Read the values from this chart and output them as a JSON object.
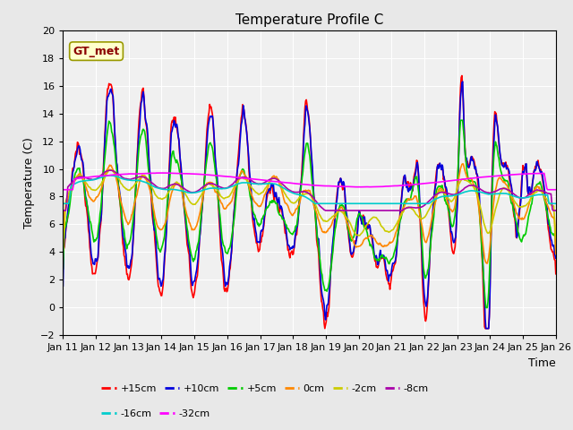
{
  "title": "Temperature Profile C",
  "xlabel": "Time",
  "ylabel": "Temperature (C)",
  "ylim": [
    -2,
    20
  ],
  "annotation": "GT_met",
  "background_color": "#e8e8e8",
  "plot_bg": "#f0f0f0",
  "x_ticks": [
    "Jan 11",
    "Jan 12",
    "Jan 13",
    "Jan 14",
    "Jan 15",
    "Jan 16",
    "Jan 17",
    "Jan 18",
    "Jan 19",
    "Jan 20",
    "Jan 21",
    "Jan 22",
    "Jan 23",
    "Jan 24",
    "Jan 25",
    "Jan 26"
  ],
  "series_order": [
    "+15cm",
    "+10cm",
    "+5cm",
    "0cm",
    "-2cm",
    "-8cm",
    "-16cm",
    "-32cm"
  ],
  "series": {
    "+15cm": {
      "color": "#ff0000",
      "lw": 1.2
    },
    "+10cm": {
      "color": "#0000dd",
      "lw": 1.2
    },
    "+5cm": {
      "color": "#00cc00",
      "lw": 1.2
    },
    "0cm": {
      "color": "#ff8800",
      "lw": 1.2
    },
    "-2cm": {
      "color": "#cccc00",
      "lw": 1.2
    },
    "-8cm": {
      "color": "#aa00aa",
      "lw": 1.2
    },
    "-16cm": {
      "color": "#00cccc",
      "lw": 1.2
    },
    "-32cm": {
      "color": "#ff00ff",
      "lw": 1.2
    }
  },
  "legend_rows": [
    [
      "+15cm",
      "+10cm",
      "+5cm",
      "0cm",
      "-2cm",
      "-8cm"
    ],
    [
      "-16cm",
      "-32cm"
    ]
  ]
}
